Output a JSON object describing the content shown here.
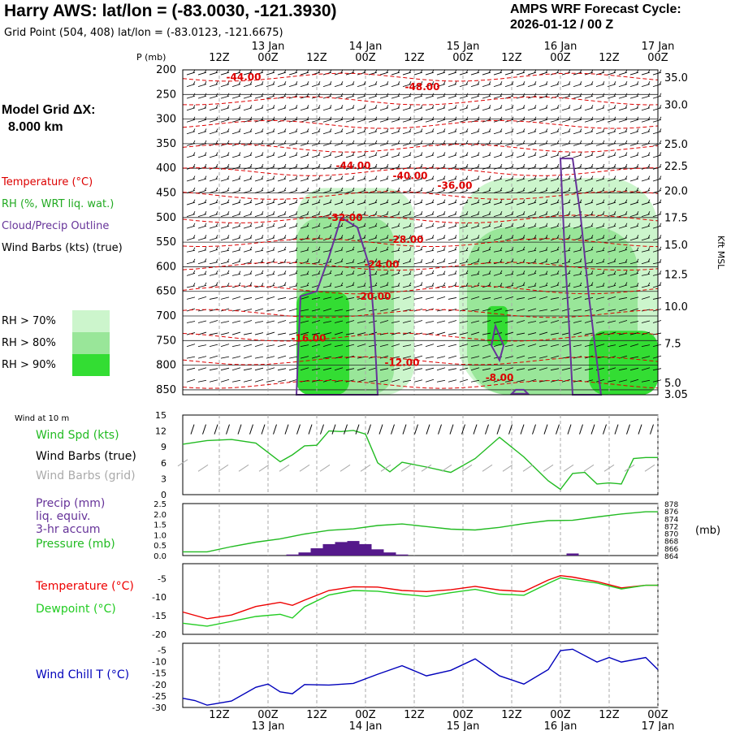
{
  "header": {
    "title": "Harry AWS:  lat/lon = (-83.0030, -121.3930)",
    "subtitle": "Grid Point (504, 408) lat/lon = (-83.0123, -121.6675)",
    "cycle_label": "AMPS WRF Forecast Cycle:",
    "cycle_value": "2026-01-12 / 00  Z",
    "grid_label": "Model Grid ΔX:",
    "grid_value": "8.000 km"
  },
  "legend": {
    "temperature": "Temperature (°C)",
    "rh": "RH (%, WRT liq. wat.)",
    "cloud": "Cloud/Precip Outline",
    "barbs": "Wind Barbs (kts) (true)",
    "rh70": "RH > 70%",
    "rh80": "RH > 80%",
    "rh90": "RH > 90%",
    "wind10m": "Wind at 10 m",
    "wind_spd": "Wind Spd (kts)",
    "wind_barbs_true": "Wind Barbs (true)",
    "wind_barbs_grid": "Wind Barbs (grid)",
    "precip1": "Precip (mm)",
    "precip2": "liq. equiv.",
    "precip3": "3-hr accum",
    "pressure": "Pressure (mb)",
    "temp": "Temperature (°C)",
    "dewpoint": "Dewpoint (°C)",
    "windchill": "Wind Chill T (°C)"
  },
  "colors": {
    "temperature": "#dd0000",
    "rh_label": "#22aa22",
    "cloud": "#663399",
    "rh70": "#ccf5cc",
    "rh80": "#99e699",
    "rh90": "#33dd33",
    "wind_spd": "#22bb22",
    "wind_grid": "#aaaaaa",
    "precip": "#551a8b",
    "pressure": "#22bb22",
    "temp": "#ee0000",
    "dewpoint": "#22cc22",
    "windchill": "#0000bb",
    "grid": "#999999"
  },
  "chart_data": [
    {
      "type": "cross-section",
      "panel": "upper-air",
      "time_ticks": [
        "12Z",
        "00Z",
        "12Z",
        "00Z",
        "12Z",
        "00Z",
        "12Z",
        "00Z",
        "12Z",
        "00Z"
      ],
      "time_hours": [
        12,
        24,
        36,
        48,
        60,
        72,
        84,
        96,
        108,
        120
      ],
      "date_labels": [
        {
          "hour": 24,
          "label": "13 Jan"
        },
        {
          "hour": 48,
          "label": "14 Jan"
        },
        {
          "hour": 72,
          "label": "15 Jan"
        },
        {
          "hour": 96,
          "label": "16 Jan"
        },
        {
          "hour": 120,
          "label": "17 Jan"
        }
      ],
      "bottom_date_labels": [
        "13 Jan",
        "14 Jan",
        "15 Jan",
        "16 Jan",
        "17 Jan"
      ],
      "pressure_axis_label": "P (mb)",
      "pressure_levels": [
        200,
        250,
        300,
        350,
        400,
        450,
        500,
        550,
        600,
        650,
        700,
        750,
        800,
        850
      ],
      "ylim_pressure": [
        200,
        860
      ],
      "xlim_hours": [
        3,
        120
      ],
      "height_axis_label": "Kft MSL",
      "height_labels": [
        {
          "p": 200,
          "label": "35.0"
        },
        {
          "p": 255,
          "label": "30.0"
        },
        {
          "p": 335,
          "label": "25.0"
        },
        {
          "p": 380,
          "label": "22.5"
        },
        {
          "p": 430,
          "label": "20.0"
        },
        {
          "p": 485,
          "label": "17.5"
        },
        {
          "p": 540,
          "label": "15.0"
        },
        {
          "p": 600,
          "label": "12.5"
        },
        {
          "p": 665,
          "label": "10.0"
        },
        {
          "p": 740,
          "label": "7.5"
        },
        {
          "p": 820,
          "label": "5.0"
        },
        {
          "p": 862,
          "label": "3.05"
        }
      ],
      "temperature_labels": [
        {
          "hour": 18,
          "p": 215,
          "label": "-44.00"
        },
        {
          "hour": 62,
          "p": 235,
          "label": "-48.00"
        },
        {
          "hour": 45,
          "p": 395,
          "label": "-44.00"
        },
        {
          "hour": 59,
          "p": 415,
          "label": "-40.00"
        },
        {
          "hour": 70,
          "p": 435,
          "label": "-36.00"
        },
        {
          "hour": 43,
          "p": 500,
          "label": "-32.00"
        },
        {
          "hour": 58,
          "p": 545,
          "label": "-28.00"
        },
        {
          "hour": 52,
          "p": 595,
          "label": "-24.00"
        },
        {
          "hour": 50,
          "p": 660,
          "label": "-20.00"
        },
        {
          "hour": 34,
          "p": 745,
          "label": "-16.00"
        },
        {
          "hour": 57,
          "p": 795,
          "label": "-12.00"
        },
        {
          "hour": 81,
          "p": 825,
          "label": "-8.00"
        }
      ],
      "rh_regions": [
        {
          "class": "rh70",
          "hour_range": [
            31,
            60
          ],
          "p_range": [
            440,
            860
          ]
        },
        {
          "class": "rh80",
          "hour_range": [
            31,
            55
          ],
          "p_range": [
            500,
            860
          ]
        },
        {
          "class": "rh90",
          "hour_range": [
            31,
            44
          ],
          "p_range": [
            650,
            860
          ]
        },
        {
          "class": "rh70",
          "hour_range": [
            71,
            120
          ],
          "p_range": [
            420,
            860
          ]
        },
        {
          "class": "rh80",
          "hour_range": [
            73,
            115
          ],
          "p_range": [
            520,
            860
          ]
        },
        {
          "class": "rh90",
          "hour_range": [
            78,
            83
          ],
          "p_range": [
            680,
            760
          ]
        },
        {
          "class": "rh90",
          "hour_range": [
            103,
            120
          ],
          "p_range": [
            730,
            860
          ]
        }
      ]
    },
    {
      "type": "line",
      "panel": "wind",
      "title": "Wind at 10 m",
      "y_ticks": [
        0,
        3,
        6,
        9,
        12,
        15
      ],
      "ylim": [
        0,
        15
      ],
      "series": [
        {
          "name": "Wind Spd (kts)",
          "x": [
            3,
            9,
            15,
            21,
            27,
            30,
            33,
            36,
            39,
            42,
            45,
            48,
            51,
            54,
            57,
            63,
            69,
            75,
            81,
            87,
            93,
            96,
            99,
            102,
            105,
            108,
            111,
            114,
            117,
            120
          ],
          "values": [
            9.5,
            10.2,
            10.4,
            9.7,
            6.2,
            7.5,
            9.2,
            9.3,
            12.0,
            11.9,
            12.1,
            11.4,
            6.0,
            4.3,
            6.1,
            5.2,
            4.2,
            6.8,
            10.8,
            7.1,
            2.6,
            1.0,
            4.0,
            4.2,
            2.0,
            2.2,
            2.0,
            6.8,
            7.0,
            7.0
          ]
        },
        {
          "name": "Wind Barbs (grid)",
          "x": [
            3,
            8,
            13,
            18,
            23,
            28,
            33,
            38,
            43,
            48,
            53,
            58,
            63,
            68,
            73,
            78,
            83,
            88,
            93,
            98,
            103,
            108,
            113,
            118
          ],
          "values": [
            6.0,
            5.0,
            5.0,
            5.0,
            5.0,
            5.0,
            5.0,
            5.0,
            5.0,
            5.0,
            5.0,
            5.0,
            5.0,
            5.0,
            5.0,
            5.0,
            5.0,
            5.0,
            5.0,
            5.0,
            5.0,
            5.0,
            5.0,
            5.0
          ]
        }
      ]
    },
    {
      "type": "bar+line",
      "panel": "precip-pressure",
      "y_ticks_left": [
        "0.0",
        "0.5",
        "1.0",
        "1.5",
        "2.0",
        "2.5"
      ],
      "ylim_left": [
        0,
        2.5
      ],
      "y_ticks_right": [
        "864",
        "866",
        "868",
        "870",
        "872",
        "874",
        "876",
        "878"
      ],
      "ylim_right": [
        864,
        878
      ],
      "right_unit": "(mb)",
      "precip": {
        "name": "Precip (mm) liq. equiv. 3-hr accum",
        "x": [
          30,
          33,
          36,
          39,
          42,
          45,
          48,
          51,
          54,
          57,
          99
        ],
        "values": [
          0.05,
          0.15,
          0.35,
          0.55,
          0.65,
          0.7,
          0.55,
          0.3,
          0.15,
          0.05,
          0.1
        ]
      },
      "pressure": {
        "name": "Pressure (mb)",
        "x": [
          3,
          9,
          15,
          21,
          27,
          33,
          39,
          45,
          51,
          57,
          63,
          69,
          75,
          81,
          87,
          93,
          99,
          105,
          111,
          117,
          120
        ],
        "values": [
          865,
          865.0,
          866.4,
          867.6,
          868.5,
          869.8,
          870.8,
          871.2,
          872.1,
          872.5,
          871.8,
          871.1,
          870.9,
          871.6,
          872.6,
          873.4,
          873.5,
          874.4,
          875.2,
          875.8,
          875.8
        ]
      }
    },
    {
      "type": "line",
      "panel": "temperature",
      "y_ticks": [
        -20,
        -15,
        -10,
        -5
      ],
      "ylim": [
        -20,
        -1
      ],
      "series": [
        {
          "name": "Temperature (°C)",
          "x": [
            3,
            9,
            15,
            21,
            27,
            30,
            33,
            39,
            45,
            51,
            57,
            63,
            69,
            75,
            81,
            87,
            93,
            96,
            99,
            105,
            111,
            117,
            120
          ],
          "values": [
            -14,
            -15.8,
            -14.8,
            -12.5,
            -11.4,
            -12.2,
            -10.8,
            -8.2,
            -7.2,
            -7.3,
            -8.2,
            -8.5,
            -8.0,
            -7.1,
            -8.1,
            -8.5,
            -5.4,
            -4.2,
            -4.6,
            -5.8,
            -7.5,
            -6.8,
            -6.8
          ]
        },
        {
          "name": "Dewpoint (°C)",
          "x": [
            3,
            9,
            15,
            21,
            27,
            30,
            33,
            39,
            45,
            51,
            57,
            63,
            69,
            75,
            81,
            87,
            93,
            96,
            99,
            105,
            111,
            117,
            120
          ],
          "values": [
            -17,
            -17.8,
            -16.5,
            -15.2,
            -14.6,
            -15.6,
            -12.6,
            -9.4,
            -8.2,
            -8.4,
            -9.2,
            -9.8,
            -8.8,
            -7.9,
            -9.2,
            -9.5,
            -6.3,
            -4.8,
            -5.3,
            -6.2,
            -7.8,
            -6.8,
            -6.8
          ]
        }
      ]
    },
    {
      "type": "line",
      "panel": "windchill",
      "y_ticks": [
        -30,
        -25,
        -20,
        -15,
        -10,
        -5
      ],
      "ylim": [
        -30,
        -2
      ],
      "x_ticks": [
        "12Z",
        "00Z",
        "12Z",
        "00Z",
        "12Z",
        "00Z",
        "12Z",
        "00Z",
        "12Z",
        "00Z"
      ],
      "series": [
        {
          "name": "Wind Chill T (°C)",
          "x": [
            3,
            6,
            9,
            15,
            21,
            24,
            27,
            30,
            33,
            39,
            45,
            51,
            57,
            63,
            69,
            75,
            81,
            87,
            93,
            96,
            99,
            105,
            108,
            111,
            117,
            120
          ],
          "values": [
            -26,
            -27,
            -29,
            -27.2,
            -21.2,
            -19.8,
            -23.2,
            -24,
            -20,
            -20.2,
            -19.5,
            -15.5,
            -11.8,
            -16.2,
            -13.8,
            -8.8,
            -16.2,
            -19.8,
            -13.5,
            -5.2,
            -4.6,
            -10.2,
            -8.2,
            -10.2,
            -8.2,
            -13.5
          ]
        }
      ]
    }
  ]
}
